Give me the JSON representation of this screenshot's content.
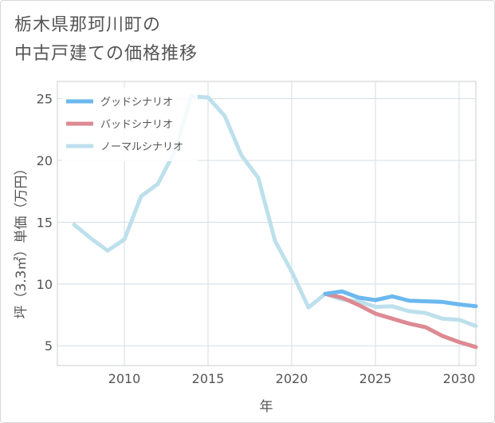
{
  "chart_data": {
    "type": "line",
    "title": "栃木県那珂川町の\n中古戸建ての価格推移",
    "xlabel": "年",
    "ylabel": "坪（3.3㎡）単価（万円）",
    "xlim": [
      2006,
      2031
    ],
    "ylim": [
      3.4,
      26.4
    ],
    "xticks": [
      2010,
      2015,
      2020,
      2025,
      2030
    ],
    "yticks": [
      5,
      10,
      15,
      20,
      25
    ],
    "grid": true,
    "legend_position": "top-left",
    "series": [
      {
        "name": "グッドシナリオ",
        "color": "#6cb8ef",
        "x": [
          2022,
          2023,
          2024,
          2025,
          2026,
          2027,
          2028,
          2029,
          2030,
          2031
        ],
        "y": [
          9.2,
          9.4,
          8.9,
          8.7,
          9.0,
          8.65,
          8.6,
          8.55,
          8.35,
          8.2
        ]
      },
      {
        "name": "バッドシナリオ",
        "color": "#dd8a93",
        "x": [
          2022,
          2023,
          2024,
          2025,
          2026,
          2027,
          2028,
          2029,
          2030,
          2031
        ],
        "y": [
          9.2,
          8.9,
          8.3,
          7.6,
          7.2,
          6.8,
          6.5,
          5.8,
          5.3,
          4.9
        ]
      },
      {
        "name": "ノーマルシナリオ",
        "color": "#bde0ec",
        "x": [
          2007,
          2008,
          2009,
          2010,
          2011,
          2012,
          2013,
          2014,
          2015,
          2016,
          2017,
          2018,
          2019,
          2020,
          2021,
          2022,
          2023,
          2024,
          2025,
          2026,
          2027,
          2028,
          2029,
          2030,
          2031
        ],
        "y": [
          14.8,
          13.7,
          12.7,
          13.6,
          17.1,
          18.1,
          20.7,
          25.2,
          25.1,
          23.6,
          20.4,
          18.6,
          13.5,
          11.0,
          8.1,
          9.2,
          8.75,
          8.6,
          8.15,
          8.2,
          7.8,
          7.65,
          7.2,
          7.1,
          6.6
        ]
      }
    ]
  }
}
